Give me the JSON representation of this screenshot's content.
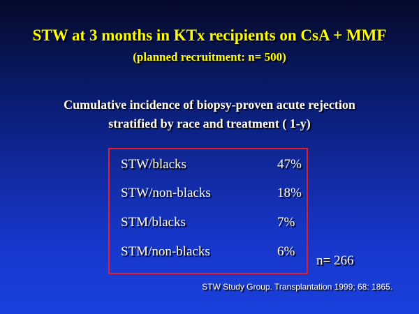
{
  "title": {
    "part1": "STW at 3 months ",
    "part2": "in KTx recipients on CsA + MMF"
  },
  "subtitle": "(planned recruitment: n= 500)",
  "heading": {
    "line1": "Cumulative incidence of biopsy-proven acute rejection",
    "line2": "stratified by race and treatment ( 1-y)"
  },
  "results": [
    {
      "group": "STW/blacks",
      "value": "47%"
    },
    {
      "group": "STW/non-blacks",
      "value": "18%"
    },
    {
      "group": "STM/blacks",
      "value": "7%"
    },
    {
      "group": "STM/non-blacks",
      "value": "6%"
    }
  ],
  "sample_size": "n= 266",
  "citation": "STW Study Group. Transplantation 1999; 68: 1865.",
  "colors": {
    "title": "#ffff00",
    "text": "#ffffff",
    "box_border": "#e0202a",
    "background_top": "#050a2a",
    "background_bottom": "#1a40dd"
  }
}
